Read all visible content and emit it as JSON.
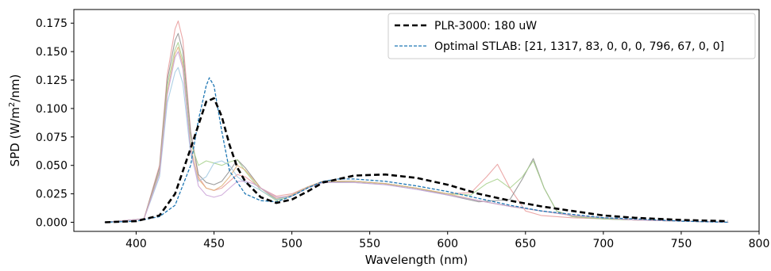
{
  "chart_data": {
    "type": "line",
    "xlabel": "Wavelength (nm)",
    "ylabel_main": "SPD (W/m",
    "ylabel_sup": "2",
    "ylabel_tail": "/nm)",
    "xlim": [
      360,
      800
    ],
    "ylim": [
      -0.008,
      0.187
    ],
    "x_ticks": [
      400,
      450,
      500,
      550,
      600,
      650,
      700,
      750,
      800
    ],
    "y_ticks": [
      0.0,
      0.025,
      0.05,
      0.075,
      0.1,
      0.125,
      0.15,
      0.175
    ],
    "y_tick_labels": [
      "0.000",
      "0.025",
      "0.050",
      "0.075",
      "0.100",
      "0.125",
      "0.150",
      "0.175"
    ],
    "grid": false,
    "legend_position": "top-right",
    "legend": [
      {
        "label": "PLR-3000: 180 uW",
        "color": "#000000",
        "dash": "dashed-bold"
      },
      {
        "label": "Optimal STLAB: [21, 1317, 83, 0, 0, 0, 796, 67, 0, 0]",
        "color": "#1f77b4",
        "dash": "dashed"
      }
    ],
    "series": [
      {
        "name": "PLR-3000: 180 uW",
        "color": "#000000",
        "style": "bold-dashed",
        "x": [
          380,
          400,
          415,
          425,
          435,
          445,
          450,
          455,
          460,
          465,
          470,
          480,
          490,
          500,
          510,
          520,
          540,
          560,
          580,
          600,
          620,
          640,
          660,
          680,
          700,
          720,
          750,
          780
        ],
        "y": [
          0.0,
          0.001,
          0.006,
          0.025,
          0.065,
          0.106,
          0.109,
          0.093,
          0.068,
          0.048,
          0.036,
          0.022,
          0.017,
          0.02,
          0.027,
          0.035,
          0.041,
          0.042,
          0.039,
          0.033,
          0.025,
          0.019,
          0.014,
          0.01,
          0.006,
          0.004,
          0.002,
          0.001
        ]
      },
      {
        "name": "Optimal STLAB: [21, 1317, 83, 0, 0, 0, 796, 67, 0, 0]",
        "color": "#1f77b4",
        "style": "dashed",
        "x": [
          380,
          400,
          415,
          425,
          435,
          440,
          445,
          447,
          450,
          455,
          460,
          470,
          480,
          490,
          500,
          510,
          520,
          530,
          540,
          560,
          580,
          600,
          620,
          640,
          660,
          680,
          700,
          720,
          750,
          780
        ],
        "y": [
          0.0,
          0.001,
          0.005,
          0.015,
          0.05,
          0.09,
          0.12,
          0.127,
          0.12,
          0.08,
          0.045,
          0.025,
          0.019,
          0.018,
          0.023,
          0.03,
          0.036,
          0.038,
          0.038,
          0.036,
          0.032,
          0.027,
          0.021,
          0.015,
          0.01,
          0.007,
          0.004,
          0.003,
          0.001,
          0.0
        ]
      },
      {
        "color": "#e89999",
        "style": "thin",
        "x": [
          380,
          405,
          415,
          420,
          425,
          427,
          430,
          435,
          440,
          445,
          450,
          455,
          460,
          465,
          470,
          480,
          490,
          500,
          510,
          520,
          540,
          560,
          580,
          600,
          615,
          625,
          632,
          640,
          650,
          660,
          680,
          700,
          720,
          750,
          780
        ],
        "y": [
          0.0,
          0.003,
          0.05,
          0.13,
          0.17,
          0.177,
          0.16,
          0.08,
          0.04,
          0.03,
          0.028,
          0.03,
          0.036,
          0.042,
          0.04,
          0.03,
          0.023,
          0.025,
          0.031,
          0.036,
          0.036,
          0.034,
          0.03,
          0.025,
          0.026,
          0.04,
          0.051,
          0.03,
          0.01,
          0.006,
          0.004,
          0.003,
          0.002,
          0.001,
          0.0
        ]
      },
      {
        "color": "#8c8c8c",
        "style": "thin",
        "x": [
          380,
          405,
          415,
          420,
          425,
          427,
          430,
          435,
          440,
          445,
          450,
          455,
          460,
          465,
          470,
          480,
          490,
          500,
          510,
          520,
          540,
          560,
          580,
          600,
          620,
          640,
          648,
          655,
          662,
          670,
          680,
          700,
          720,
          750,
          780
        ],
        "y": [
          0.0,
          0.003,
          0.048,
          0.125,
          0.16,
          0.166,
          0.15,
          0.078,
          0.042,
          0.035,
          0.033,
          0.036,
          0.045,
          0.055,
          0.048,
          0.03,
          0.02,
          0.024,
          0.031,
          0.036,
          0.036,
          0.034,
          0.03,
          0.024,
          0.018,
          0.02,
          0.038,
          0.056,
          0.03,
          0.01,
          0.005,
          0.003,
          0.002,
          0.001,
          0.0
        ]
      },
      {
        "color": "#a6d08a",
        "style": "thin",
        "x": [
          380,
          405,
          415,
          420,
          425,
          427,
          430,
          435,
          440,
          445,
          450,
          455,
          460,
          465,
          470,
          480,
          490,
          500,
          510,
          520,
          540,
          560,
          580,
          600,
          615,
          625,
          632,
          640,
          648,
          655,
          662,
          670,
          680,
          700,
          720,
          750,
          780
        ],
        "y": [
          0.0,
          0.003,
          0.045,
          0.12,
          0.152,
          0.158,
          0.142,
          0.07,
          0.05,
          0.054,
          0.052,
          0.05,
          0.053,
          0.055,
          0.045,
          0.028,
          0.019,
          0.023,
          0.03,
          0.035,
          0.036,
          0.034,
          0.03,
          0.025,
          0.024,
          0.034,
          0.038,
          0.03,
          0.04,
          0.054,
          0.03,
          0.01,
          0.005,
          0.003,
          0.002,
          0.001,
          0.0
        ]
      },
      {
        "color": "#9fc8e0",
        "style": "thin",
        "x": [
          380,
          405,
          415,
          420,
          425,
          427,
          430,
          435,
          440,
          445,
          450,
          455,
          460,
          465,
          470,
          480,
          490,
          500,
          510,
          520,
          540,
          560,
          580,
          600,
          620,
          640,
          660,
          680,
          700,
          720,
          750,
          780
        ],
        "y": [
          0.0,
          0.003,
          0.04,
          0.105,
          0.132,
          0.136,
          0.122,
          0.06,
          0.036,
          0.04,
          0.052,
          0.054,
          0.05,
          0.04,
          0.035,
          0.028,
          0.02,
          0.024,
          0.031,
          0.035,
          0.035,
          0.033,
          0.029,
          0.024,
          0.019,
          0.014,
          0.01,
          0.006,
          0.004,
          0.002,
          0.001,
          0.0
        ]
      },
      {
        "color": "#e0b27a",
        "style": "thin",
        "x": [
          380,
          405,
          415,
          420,
          425,
          427,
          430,
          435,
          440,
          445,
          450,
          455,
          460,
          465,
          470,
          480,
          490,
          500,
          510,
          520,
          540,
          560,
          580,
          600,
          620,
          640,
          660,
          680,
          700,
          720,
          750,
          780
        ],
        "y": [
          0.0,
          0.003,
          0.044,
          0.115,
          0.148,
          0.154,
          0.138,
          0.066,
          0.038,
          0.03,
          0.028,
          0.032,
          0.04,
          0.05,
          0.046,
          0.03,
          0.021,
          0.024,
          0.031,
          0.036,
          0.036,
          0.034,
          0.03,
          0.025,
          0.019,
          0.014,
          0.01,
          0.006,
          0.004,
          0.002,
          0.001,
          0.0
        ]
      },
      {
        "color": "#c9a0d6",
        "style": "thin",
        "x": [
          380,
          405,
          415,
          420,
          425,
          427,
          430,
          435,
          440,
          445,
          450,
          455,
          460,
          465,
          470,
          475,
          480,
          490,
          500,
          510,
          520,
          540,
          560,
          580,
          600,
          620,
          640,
          660,
          680,
          700,
          720,
          750,
          780
        ],
        "y": [
          0.0,
          0.003,
          0.043,
          0.112,
          0.145,
          0.15,
          0.135,
          0.064,
          0.032,
          0.024,
          0.022,
          0.024,
          0.03,
          0.036,
          0.036,
          0.034,
          0.03,
          0.022,
          0.023,
          0.03,
          0.035,
          0.035,
          0.033,
          0.029,
          0.024,
          0.019,
          0.014,
          0.01,
          0.006,
          0.004,
          0.002,
          0.001,
          0.0
        ]
      }
    ]
  }
}
